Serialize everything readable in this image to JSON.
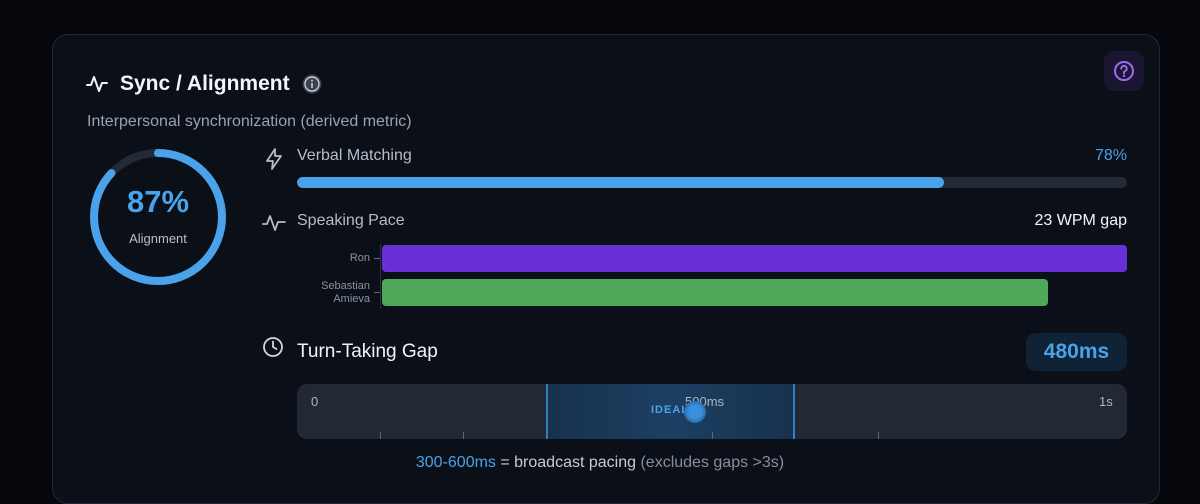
{
  "header": {
    "title": "Sync / Alignment",
    "subtitle": "Interpersonal synchronization (derived metric)",
    "pulse_icon": "pulse-icon",
    "info_icon": "info-icon",
    "help_icon": "help-icon"
  },
  "alignment": {
    "value": "87%",
    "label": "Alignment",
    "fraction": 0.87,
    "color": "#4aa3ea"
  },
  "verbal_matching": {
    "icon": "lightning-icon",
    "label": "Verbal Matching",
    "value": "78%",
    "fraction": 0.78
  },
  "speaking_pace": {
    "icon": "pulse-icon",
    "label": "Speaking Pace",
    "value": "23 WPM gap",
    "speakers": [
      {
        "name_lines": [
          "Ron"
        ],
        "fraction": 1.0,
        "color": "#6a2fd6"
      },
      {
        "name_lines": [
          "Sebastian",
          "Amieva"
        ],
        "fraction": 0.894,
        "color": "#4fa85a"
      }
    ]
  },
  "turn_taking": {
    "icon": "clock-icon",
    "label": "Turn-Taking Gap",
    "value": "480ms",
    "value_ms": 480,
    "axis_max_ms": 1000,
    "ideal_range_ms": [
      300,
      600
    ],
    "ideal_label": "IDEAL",
    "labels": {
      "start": "0",
      "mid": "500ms",
      "end": "1s"
    },
    "footer_range": "300-600ms",
    "footer_text": " = broadcast pacing ",
    "footer_note": "(excludes gaps >3s)"
  },
  "colors": {
    "accent": "#4aa3ea",
    "help_accent": "#9b6cf0"
  }
}
